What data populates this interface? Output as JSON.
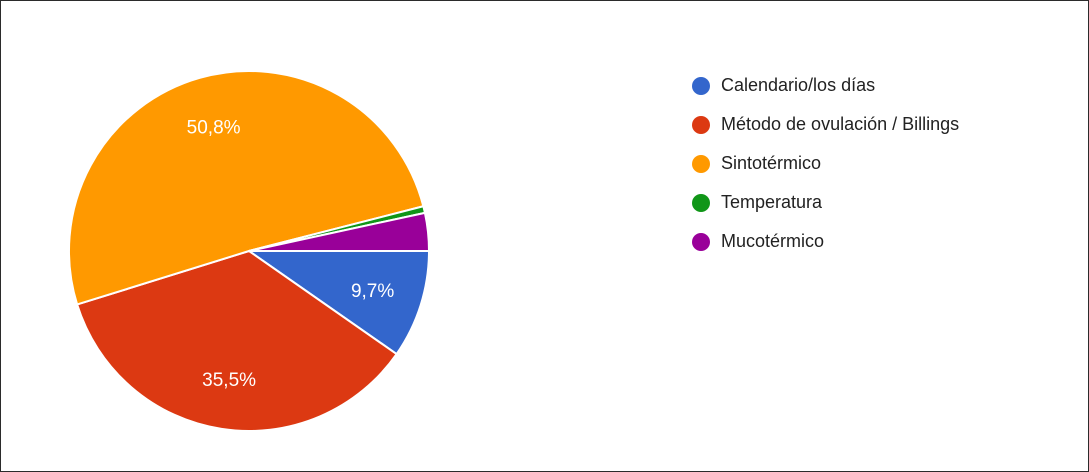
{
  "chart_data": {
    "type": "pie",
    "categories": [
      "Calendario/los días",
      "Método de ovulación / Billings",
      "Sintotérmico",
      "Temperatura",
      "Mucotérmico"
    ],
    "values": [
      9.7,
      35.5,
      50.8,
      0.6,
      3.4
    ],
    "value_labels": [
      "9,7%",
      "35,5%",
      "50,8%",
      "",
      ""
    ],
    "colors": [
      "#3366cc",
      "#dc3912",
      "#ff9900",
      "#109618",
      "#990099"
    ],
    "legend_position": "right"
  }
}
